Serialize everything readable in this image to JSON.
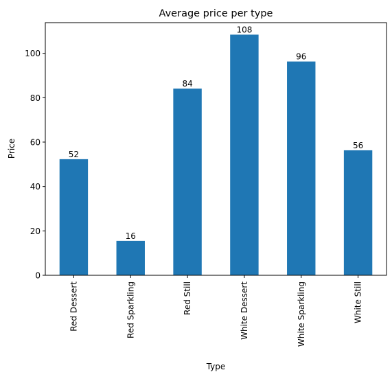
{
  "chart_data": {
    "type": "bar",
    "title": "Average price per type",
    "xlabel": "Type",
    "ylabel": "Price",
    "categories": [
      "Red Dessert",
      "Red Sparkling",
      "Red Still",
      "White Dessert",
      "White Sparkling",
      "White Still"
    ],
    "values": [
      52.3,
      15.5,
      84.1,
      108.4,
      96.3,
      56.3
    ],
    "data_labels": [
      "52",
      "16",
      "84",
      "108",
      "96",
      "56"
    ],
    "yticks": [
      0,
      20,
      40,
      60,
      80,
      100
    ],
    "ylim": [
      0,
      113.8
    ],
    "bar_color": "#1f77b4",
    "grid": false,
    "legend": "none"
  }
}
